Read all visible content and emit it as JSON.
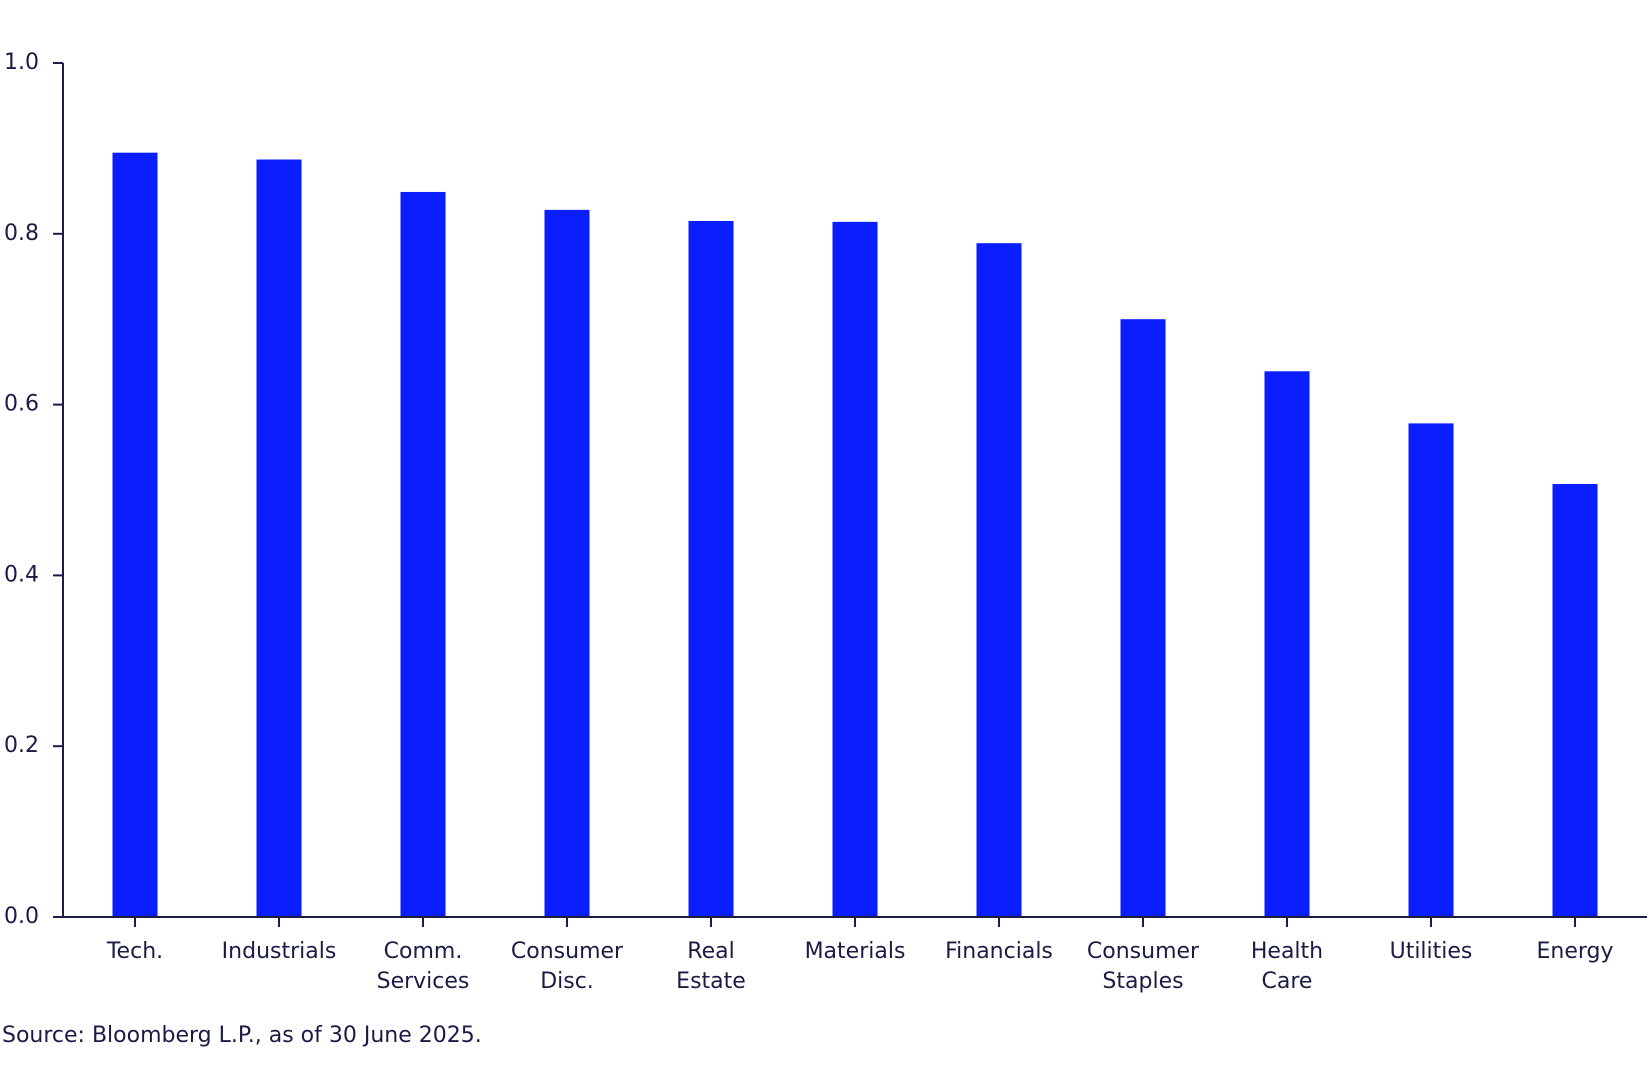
{
  "chart_data": {
    "type": "bar",
    "categories": [
      "Tech.",
      "Industrials",
      "Comm.\nServices",
      "Consumer\nDisc.",
      "Real\nEstate",
      "Materials",
      "Financials",
      "Consumer\nStaples",
      "Health\nCare",
      "Utilities",
      "Energy"
    ],
    "values": [
      0.895,
      0.887,
      0.849,
      0.828,
      0.815,
      0.814,
      0.789,
      0.7,
      0.639,
      0.578,
      0.507
    ],
    "color": "#0a1eff",
    "ylim": [
      0,
      1
    ],
    "yticks": [
      {
        "value": 0,
        "label": "0.0"
      },
      0.2,
      0.4,
      0.6,
      0.8,
      {
        "value": 1,
        "label": "1.0"
      }
    ],
    "source": "Source: Bloomberg L.P., as of 30 June 2025."
  }
}
